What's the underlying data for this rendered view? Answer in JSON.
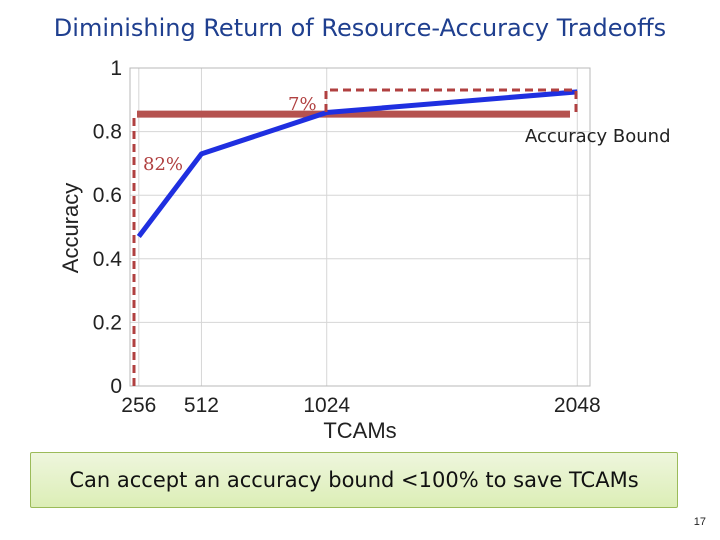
{
  "slide": {
    "title": "Diminishing Return of Resource-Accuracy Tradeoffs",
    "callout": "Can accept an accuracy bound <100% to save TCAMs",
    "page_number": "17"
  },
  "chart_data": {
    "type": "line",
    "title": "",
    "xlabel": "TCAMs",
    "ylabel": "Accuracy",
    "x": [
      256,
      512,
      1024,
      2048
    ],
    "x_tick_labels": [
      "256",
      "512",
      "1024",
      "2048"
    ],
    "xlim": [
      220,
      2100
    ],
    "ylim": [
      0,
      1
    ],
    "y_ticks": [
      0,
      0.2,
      0.4,
      0.6,
      0.8,
      1
    ],
    "y_tick_labels": [
      "0",
      "0.2",
      "0.4",
      "0.6",
      "0.8",
      "1"
    ],
    "grid": true,
    "series": [
      {
        "name": "",
        "color": "#1f2fe0",
        "values": [
          0.47,
          0.73,
          0.86,
          0.925
        ]
      }
    ],
    "accuracy_bound": {
      "value": 0.855,
      "label": "Accuracy Bound",
      "color": "#b5524f"
    },
    "annotations": [
      {
        "text": "82%",
        "color": "#b04040"
      },
      {
        "text": "7%",
        "color": "#b04040"
      }
    ]
  }
}
